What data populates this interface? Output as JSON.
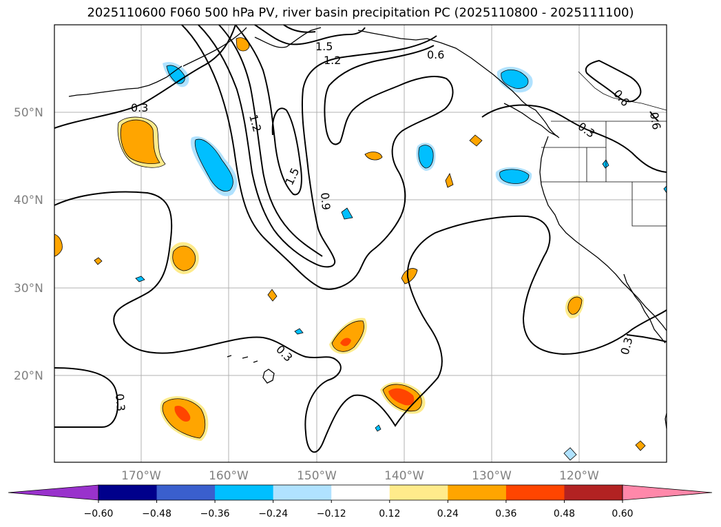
{
  "title": "2025110600 F060 500 hPa PV, river basin precipitation PC (2025110800 - 2025111100)",
  "lat_labels": [
    "50°N",
    "40°N",
    "30°N",
    "20°N"
  ],
  "lon_labels": [
    "170°W",
    "160°W",
    "150°W",
    "140°W",
    "130°W",
    "120°W"
  ],
  "contour_labels": [
    "1.5",
    "1.2",
    "0.6",
    "0.3",
    "1.2",
    "1.5",
    "0.9",
    "0.3",
    "0.3",
    "0.6",
    "0.3",
    "0.6",
    "0.3"
  ],
  "colorbar": {
    "ticks": [
      "−0.60",
      "−0.48",
      "−0.36",
      "−0.24",
      "−0.12",
      "0.12",
      "0.24",
      "0.36",
      "0.48",
      "0.60"
    ],
    "colors": [
      "#9932cc",
      "#00008b",
      "#3a5fcd",
      "#00bfff",
      "#b0e2ff",
      "#ffffff",
      "#ffeb8b",
      "#ffa500",
      "#ff4500",
      "#b22222",
      "#ff88aa"
    ]
  },
  "map_style": {
    "contour_color": "#000000",
    "grid_color": "#b0b0b0",
    "coast_color": "#000000"
  }
}
